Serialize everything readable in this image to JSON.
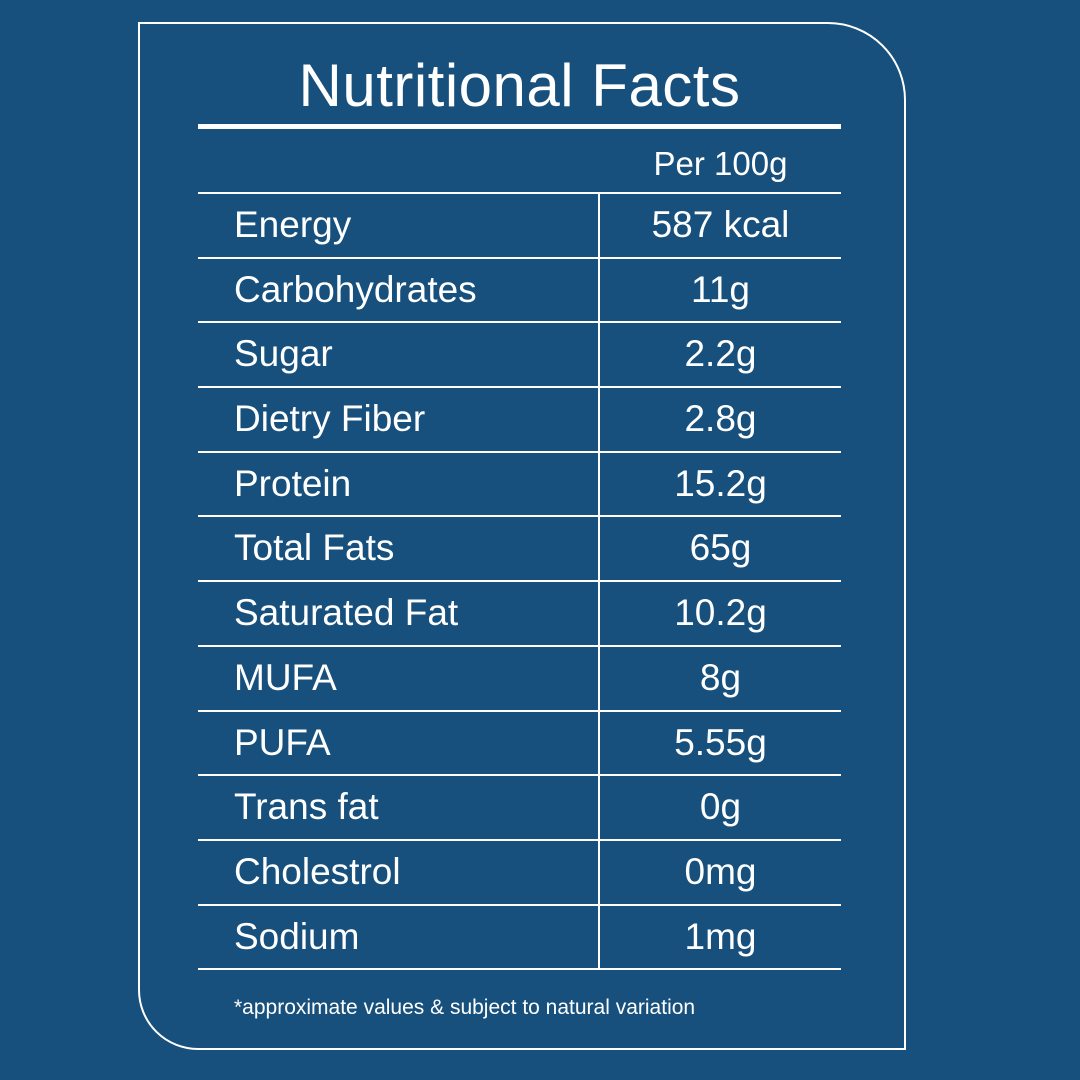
{
  "title": "Nutritional Facts",
  "column_header": "Per 100g",
  "rows": [
    {
      "name": "Energy",
      "value": "587 kcal"
    },
    {
      "name": "Carbohydrates",
      "value": "11g"
    },
    {
      "name": "Sugar",
      "value": "2.2g"
    },
    {
      "name": "Dietry Fiber",
      "value": "2.8g"
    },
    {
      "name": "Protein",
      "value": "15.2g"
    },
    {
      "name": "Total Fats",
      "value": "65g"
    },
    {
      "name": "Saturated Fat",
      "value": "10.2g"
    },
    {
      "name": "MUFA",
      "value": "8g"
    },
    {
      "name": "PUFA",
      "value": "5.55g"
    },
    {
      "name": "Trans fat",
      "value": "0g"
    },
    {
      "name": "Cholestrol",
      "value": "0mg"
    },
    {
      "name": "Sodium",
      "value": "1mg"
    }
  ],
  "footnote": "*approximate values & subject to natural variation",
  "colors": {
    "background": "#17507c",
    "foreground": "#ffffff"
  }
}
